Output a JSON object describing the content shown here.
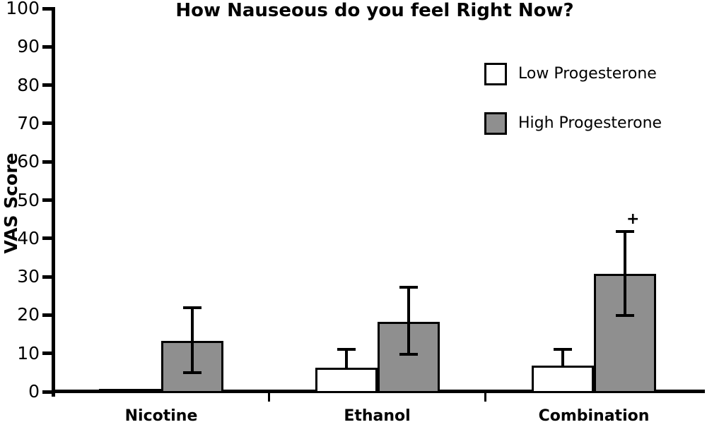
{
  "chart": {
    "background": "#ffffff",
    "axis_color": "#000000",
    "bar_outline_color": "#000000"
  },
  "chart_data": {
    "type": "bar",
    "title": "How Nauseous do you feel Right Now?",
    "xlabel": "",
    "ylabel": "VAS Score",
    "ylim": [
      0,
      100
    ],
    "yticks": [
      0,
      10,
      20,
      30,
      40,
      50,
      60,
      70,
      80,
      90,
      100
    ],
    "categories": [
      "Nicotine",
      "Ethanol",
      "Combination"
    ],
    "series": [
      {
        "name": "Low Progesterone",
        "color": "#ffffff",
        "values": [
          0.7,
          6.3,
          6.8
        ],
        "error_cap_top": [
          null,
          11,
          11
        ],
        "error_cap_bottom": [
          null,
          null,
          null
        ]
      },
      {
        "name": "High Progesterone",
        "color": "#8f8f8f",
        "values": [
          13.2,
          18.3,
          30.7
        ],
        "error_cap_top": [
          22,
          27.2,
          41.8
        ],
        "error_cap_bottom": [
          5,
          9.8,
          19.8
        ]
      }
    ],
    "annotations": [
      {
        "text": "+",
        "category_index": 2,
        "series_index": 1
      }
    ],
    "legend_position": "upper right",
    "grid": false
  }
}
